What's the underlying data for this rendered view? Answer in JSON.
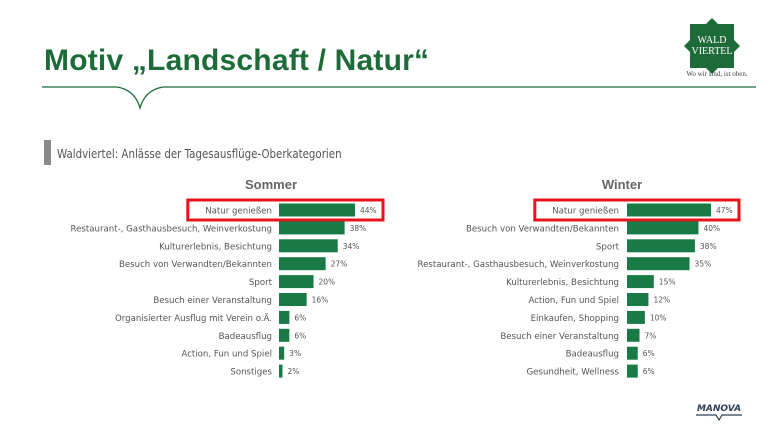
{
  "header": {
    "title": "Motiv „Landschaft / Natur“",
    "logo_text_1": "WALD",
    "logo_text_2": "VIERTEL",
    "logo_tagline": "Wo wir sind, ist oben.",
    "brand_color": "#1e6b3a"
  },
  "section": {
    "title": "Waldviertel: Anlässe der Tagesausflüge-Oberkategorien"
  },
  "footer": {
    "brand": "MANOVA"
  },
  "chart_data": [
    {
      "type": "bar",
      "orientation": "horizontal",
      "title": "Sommer",
      "unit": "%",
      "categories": [
        "Natur genießen",
        "Restaurant-, Gasthausbesuch, Weinverkostung",
        "Kulturerlebnis, Besichtung",
        "Besuch von Verwandten/Bekannten",
        "Sport",
        "Besuch einer Veranstaltung",
        "Organisierter Ausflug mit Verein o.Ä.",
        "Badeausflug",
        "Action, Fun und Spiel",
        "Sonstiges"
      ],
      "values": [
        44,
        38,
        34,
        27,
        20,
        16,
        6,
        6,
        3,
        2
      ],
      "labels": [
        "44%",
        "38%",
        "34%",
        "27%",
        "20%",
        "16%",
        "6%",
        "6%",
        "3%",
        "2%"
      ],
      "highlight_index": 0,
      "bar_color": "#1a7a46",
      "highlight_color": "#e8141b"
    },
    {
      "type": "bar",
      "orientation": "horizontal",
      "title": "Winter",
      "unit": "%",
      "categories": [
        "Natur genießen",
        "Besuch von Verwandten/Bekannten",
        "Sport",
        "Restaurant-, Gasthausbesuch, Weinverkostung",
        "Kulturerlebnis, Besichtung",
        "Action, Fun und Spiel",
        "Einkaufen, Shopping",
        "Besuch einer Veranstaltung",
        "Badeausflug",
        "Gesundheit, Wellness"
      ],
      "values": [
        47,
        40,
        38,
        35,
        15,
        12,
        10,
        7,
        6,
        6
      ],
      "labels": [
        "47%",
        "40%",
        "38%",
        "35%",
        "15%",
        "12%",
        "10%",
        "7%",
        "6%",
        "6%"
      ],
      "highlight_index": 0,
      "bar_color": "#1a7a46",
      "highlight_color": "#e8141b"
    }
  ]
}
